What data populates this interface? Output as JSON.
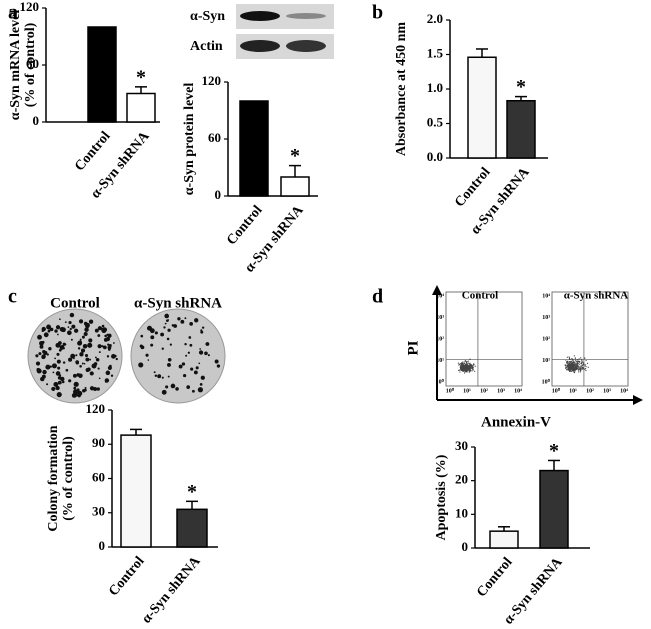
{
  "chart_data": [
    {
      "type": "bar",
      "panel": "a",
      "ylabel": [
        "α-Syn mRNA level",
        "(% of control)"
      ],
      "categories": [
        "Control",
        "α-Syn shRNA"
      ],
      "values": [
        100,
        30
      ],
      "errors": [
        0,
        7
      ],
      "colors": [
        "#000000",
        "#ffffff"
      ],
      "ylim": [
        0,
        120
      ],
      "yticks": [
        0,
        60,
        120
      ],
      "annotation": "*"
    },
    {
      "type": "bar",
      "ylabel": "α-Syn protein level",
      "blot_labels": [
        "α-Syn",
        "Actin"
      ],
      "categories": [
        "Control",
        "α-Syn shRNA"
      ],
      "values": [
        100,
        20
      ],
      "errors": [
        0,
        12
      ],
      "colors": [
        "#000000",
        "#ffffff"
      ],
      "ylim": [
        0,
        120
      ],
      "yticks": [
        0,
        60,
        120
      ],
      "annotation": "*"
    },
    {
      "type": "bar",
      "panel": "b",
      "ylabel": "Absorbance at 450 nm",
      "categories": [
        "Control",
        "α-Syn shRNA"
      ],
      "values": [
        1.46,
        0.83
      ],
      "errors": [
        0.12,
        0.06
      ],
      "colors": [
        "#f7f7f7",
        "#333333"
      ],
      "ylim": [
        0,
        2.0
      ],
      "yticks": [
        {
          "value": 0,
          "label": "0.0"
        },
        0.5,
        {
          "value": 1,
          "label": "1.0"
        },
        1.5,
        {
          "value": 2,
          "label": "2.0"
        }
      ],
      "annotation": "*"
    },
    {
      "type": "bar",
      "panel": "c",
      "ylabel": [
        "Colony formation",
        "(% of control)"
      ],
      "image_labels": [
        "Control",
        "α-Syn shRNA"
      ],
      "categories": [
        "Control",
        "α-Syn shRNA"
      ],
      "values": [
        98,
        33
      ],
      "errors": [
        5,
        7
      ],
      "colors": [
        "#f7f7f7",
        "#333333"
      ],
      "ylim": [
        0,
        120
      ],
      "yticks": [
        0,
        30,
        60,
        90,
        120
      ],
      "annotation": "*"
    },
    {
      "type": "bar",
      "panel": "d",
      "ylabel": "Apoptosis (%)",
      "flow": {
        "labels": [
          "Control",
          "α-Syn shRNA"
        ],
        "x_label": "Annexin-V",
        "y_label": "PI",
        "tick_labels": [
          "10⁰",
          "10¹",
          "10²",
          "10³",
          "10⁴"
        ]
      },
      "categories": [
        "Control",
        "α-Syn shRNA"
      ],
      "values": [
        5,
        23
      ],
      "errors": [
        1.3,
        3
      ],
      "colors": [
        "#f7f7f7",
        "#333333"
      ],
      "ylim": [
        0,
        30
      ],
      "yticks": [
        0,
        10,
        20,
        30
      ],
      "annotation": "*"
    }
  ]
}
